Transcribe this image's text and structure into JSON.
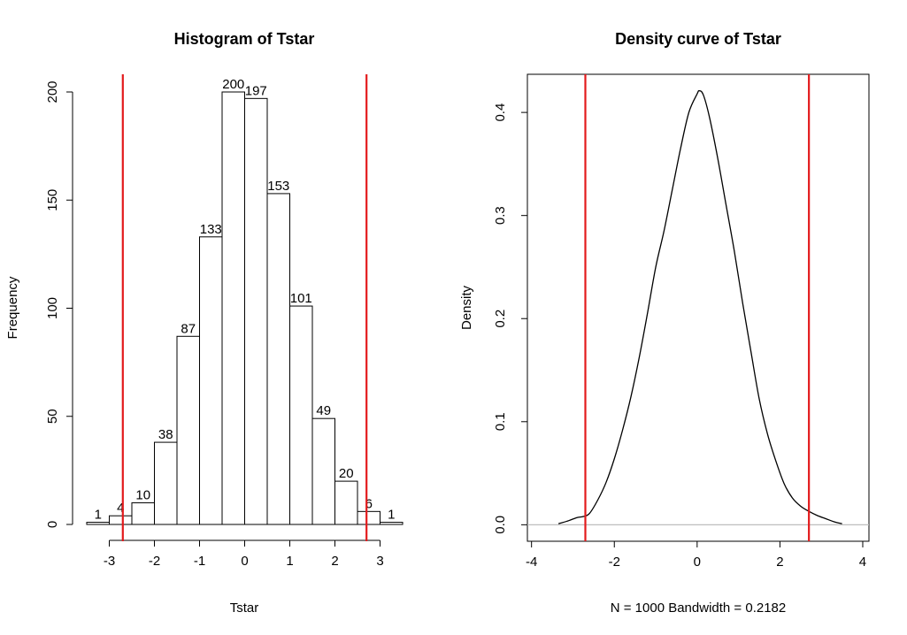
{
  "chart_data": [
    {
      "type": "bar",
      "title": "Histogram of Tstar",
      "xlabel": "Tstar",
      "ylabel": "Frequency",
      "bin_edges": [
        -3.5,
        -3,
        -2.5,
        -2,
        -1.5,
        -1,
        -0.5,
        0,
        0.5,
        1,
        1.5,
        2,
        2.5,
        3,
        3.5
      ],
      "values": [
        1,
        4,
        10,
        38,
        87,
        133,
        200,
        197,
        153,
        101,
        49,
        20,
        6,
        1
      ],
      "value_labels": [
        "1",
        "4",
        "10",
        "38",
        "87",
        "133",
        "200",
        "197",
        "153",
        "101",
        "49",
        "20",
        "6",
        "1"
      ],
      "x_ticks": [
        -3,
        -2,
        -1,
        0,
        1,
        2,
        3
      ],
      "x_tick_labels": [
        "-3",
        "-2",
        "-1",
        "0",
        "1",
        "2",
        "3"
      ],
      "y_ticks": [
        0,
        50,
        100,
        150,
        200
      ],
      "y_tick_labels": [
        "0",
        "50",
        "100",
        "150",
        "200"
      ],
      "xlim": [
        -3.5,
        3.5
      ],
      "ylim": [
        0,
        200
      ],
      "vlines": [
        -2.7,
        2.7
      ],
      "vline_color": "#e31a1c",
      "bar_color": "#ffffff",
      "grid": false
    },
    {
      "type": "line",
      "title": "Density curve of Tstar",
      "xlabel": "N = 1000   Bandwidth = 0.2182",
      "ylabel": "Density",
      "x": [
        -3.35,
        -3.1,
        -2.9,
        -2.75,
        -2.6,
        -2.4,
        -2.2,
        -2.0,
        -1.8,
        -1.6,
        -1.4,
        -1.2,
        -1.0,
        -0.8,
        -0.6,
        -0.4,
        -0.2,
        0.0,
        0.05,
        0.15,
        0.3,
        0.5,
        0.7,
        0.9,
        1.1,
        1.3,
        1.5,
        1.7,
        1.9,
        2.1,
        2.3,
        2.5,
        2.7,
        2.9,
        3.1,
        3.3,
        3.5
      ],
      "y": [
        0.001,
        0.004,
        0.007,
        0.008,
        0.011,
        0.024,
        0.041,
        0.064,
        0.092,
        0.124,
        0.162,
        0.205,
        0.25,
        0.285,
        0.325,
        0.365,
        0.4,
        0.418,
        0.421,
        0.417,
        0.395,
        0.355,
        0.31,
        0.265,
        0.215,
        0.168,
        0.122,
        0.088,
        0.062,
        0.04,
        0.026,
        0.018,
        0.013,
        0.009,
        0.006,
        0.003,
        0.001
      ],
      "x_ticks": [
        -4,
        -2,
        0,
        2,
        4
      ],
      "x_tick_labels": [
        "-4",
        "-2",
        "0",
        "2",
        "4"
      ],
      "y_ticks": [
        0.0,
        0.1,
        0.2,
        0.3,
        0.4
      ],
      "y_tick_labels": [
        "0.0",
        "0.1",
        "0.2",
        "0.3",
        "0.4"
      ],
      "xlim": [
        -4.1,
        4.15
      ],
      "ylim": [
        -0.016,
        0.437
      ],
      "vlines": [
        -2.7,
        2.7
      ],
      "vline_color": "#e31a1c",
      "baseline_color": "#bebebe",
      "grid": false
    }
  ]
}
